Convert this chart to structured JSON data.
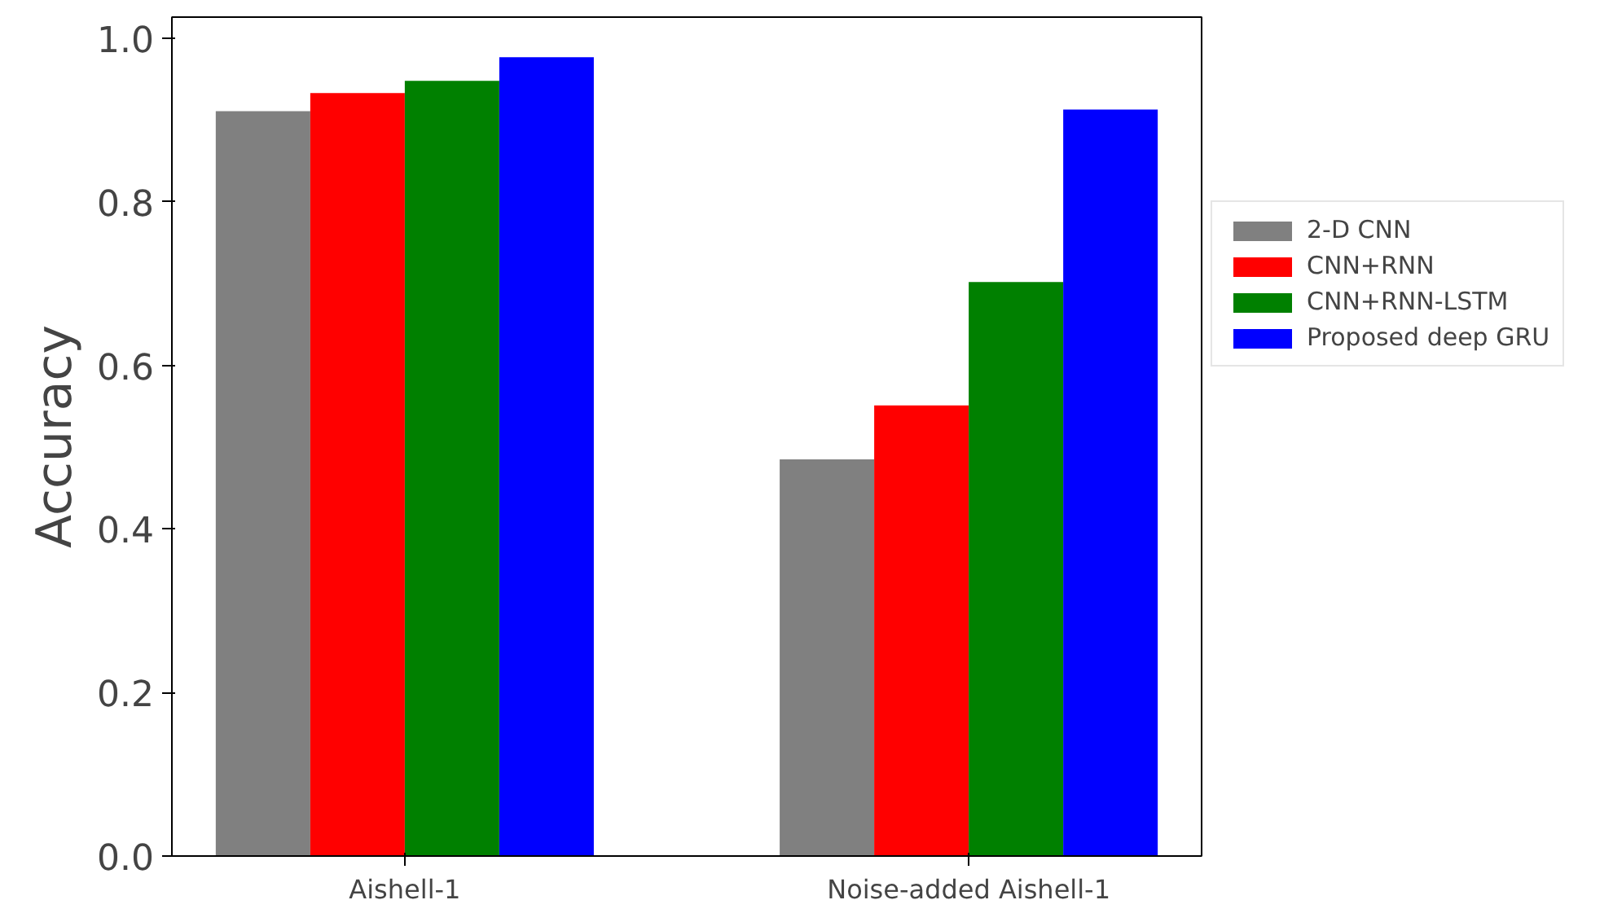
{
  "chart_data": {
    "type": "bar",
    "ylabel": "Accuracy",
    "categories": [
      "Aishell-1",
      "Noise-added Aishell-1"
    ],
    "series": [
      {
        "name": "2-D CNN",
        "color": "#808080",
        "values": [
          0.911,
          0.485
        ]
      },
      {
        "name": "CNN+RNN",
        "color": "#ff0000",
        "values": [
          0.933,
          0.551
        ]
      },
      {
        "name": "CNN+RNN-LSTM",
        "color": "#008000",
        "values": [
          0.948,
          0.702
        ]
      },
      {
        "name": "Proposed deep GRU",
        "color": "#0000ff",
        "values": [
          0.977,
          0.913
        ]
      }
    ],
    "ylim": [
      0,
      1.026
    ],
    "yticks": [
      {
        "value": 0,
        "label": "0.0"
      },
      {
        "value": 0.2,
        "label": "0.2"
      },
      {
        "value": 0.4,
        "label": "0.4"
      },
      {
        "value": 0.6,
        "label": "0.6"
      },
      {
        "value": 0.8,
        "label": "0.8"
      },
      {
        "value": 1,
        "label": "1.0"
      }
    ],
    "grid": false,
    "legend": "right"
  }
}
